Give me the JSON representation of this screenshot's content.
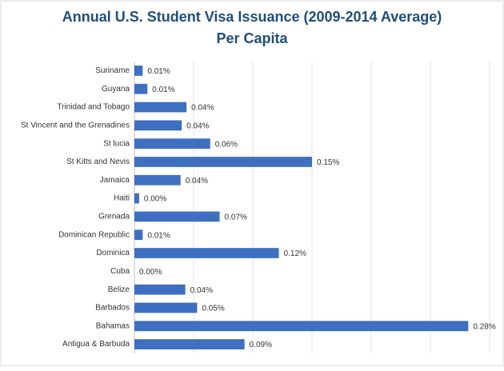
{
  "chart_data": {
    "type": "hbar",
    "title": [
      "Annual U.S. Student Visa Issuance (2009-2014 Average)",
      "Per Capita"
    ],
    "categories": [
      "Suriname",
      "Guyana",
      "Trinidad and Tobago",
      "St Vincent and the Grenadines",
      "St lucia",
      "St Kitts and Nevis",
      "Jamaica",
      "Haiti",
      "Grenada",
      "Dominican Republic",
      "Dominica",
      "Cuba",
      "Belize",
      "Barbados",
      "Bahamas",
      "Antigua & Barbuda"
    ],
    "values": [
      0.007,
      0.011,
      0.044,
      0.04,
      0.064,
      0.15,
      0.039,
      0.004,
      0.072,
      0.007,
      0.122,
      0,
      0.043,
      0.053,
      0.282,
      0.093
    ],
    "value_labels": [
      "0.01%",
      "0.01%",
      "0.04%",
      "0.04%",
      "0.06%",
      "0.15%",
      "0.04%",
      "0.00%",
      "0.07%",
      "0.01%",
      "0.12%",
      "0.00%",
      "0.04%",
      "0.05%",
      "0.28%",
      "0.09%"
    ],
    "color": "#3f6fc0",
    "xlim": [
      0,
      0.3
    ],
    "xticks": [
      0,
      0.05,
      0.1,
      0.15,
      0.2,
      0.25,
      0.3
    ],
    "grid": true
  }
}
